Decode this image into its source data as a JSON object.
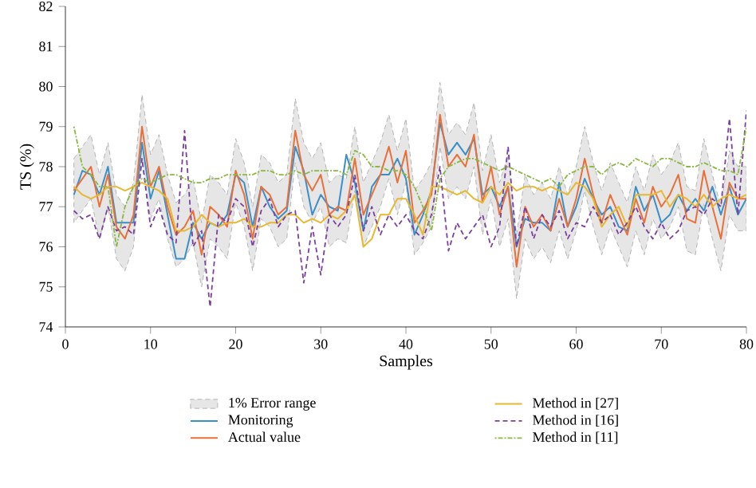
{
  "chart_data": {
    "type": "line",
    "xlabel": "Samples",
    "ylabel": "TS (%)",
    "x": [
      1,
      2,
      3,
      4,
      5,
      6,
      7,
      8,
      9,
      10,
      11,
      12,
      13,
      14,
      15,
      16,
      17,
      18,
      19,
      20,
      21,
      22,
      23,
      24,
      25,
      26,
      27,
      28,
      29,
      30,
      31,
      32,
      33,
      34,
      35,
      36,
      37,
      38,
      39,
      40,
      41,
      42,
      43,
      44,
      45,
      46,
      47,
      48,
      49,
      50,
      51,
      52,
      53,
      54,
      55,
      56,
      57,
      58,
      59,
      60,
      61,
      62,
      63,
      64,
      65,
      66,
      67,
      68,
      69,
      70,
      71,
      72,
      73,
      74,
      75,
      76,
      77,
      78,
      79,
      80
    ],
    "xlim": [
      0,
      80
    ],
    "xticks": [
      0,
      10,
      20,
      30,
      40,
      50,
      60,
      70,
      80
    ],
    "ylim": [
      74,
      82
    ],
    "yticks": [
      74,
      75,
      76,
      77,
      78,
      79,
      80,
      81,
      82
    ],
    "grid": false,
    "legend": "bottom",
    "marker": "none",
    "series": [
      {
        "name": "1% Error range",
        "type": "area",
        "color": "#e6e6e6",
        "line_style": "dashed",
        "values": [
          null,
          null,
          null,
          null,
          null,
          null,
          null,
          null,
          null,
          null,
          null,
          null,
          null,
          null,
          null,
          null,
          null,
          null,
          null,
          null,
          null,
          null,
          null,
          null,
          null,
          null,
          null,
          null,
          null,
          null,
          null,
          null,
          null,
          null,
          null,
          null,
          null,
          null,
          null,
          null,
          null,
          null,
          null,
          null,
          null,
          null,
          null,
          null,
          null,
          null,
          null,
          null,
          null,
          null,
          null,
          null,
          null,
          null,
          null,
          null,
          null,
          null,
          null,
          null,
          null,
          null,
          null,
          null,
          null,
          null,
          null,
          null,
          null,
          null,
          null,
          null,
          null,
          null,
          null,
          null
        ],
        "lower": [
          76.6,
          76.9,
          77.2,
          76.2,
          77.0,
          75.7,
          75.4,
          76.0,
          78.2,
          76.7,
          77.2,
          76.2,
          75.5,
          75.7,
          76.1,
          75.0,
          76.2,
          76.0,
          75.7,
          77.1,
          76.5,
          75.4,
          76.7,
          76.5,
          76.0,
          76.2,
          78.1,
          77.0,
          76.6,
          77.0,
          76.0,
          76.2,
          76.1,
          77.4,
          76.0,
          76.5,
          77.0,
          77.7,
          76.8,
          77.6,
          75.8,
          76.1,
          76.5,
          78.5,
          77.2,
          77.5,
          77.2,
          78.0,
          76.3,
          77.2,
          76.0,
          76.7,
          74.7,
          76.2,
          75.7,
          76.0,
          75.6,
          76.4,
          75.7,
          76.4,
          77.4,
          76.5,
          75.8,
          76.5,
          76.0,
          75.5,
          76.4,
          75.8,
          76.7,
          76.2,
          76.5,
          77.0,
          75.9,
          75.8,
          77.1,
          76.2,
          75.4,
          76.8,
          76.4,
          76.4
        ],
        "upper": [
          78.2,
          78.5,
          78.8,
          77.8,
          78.6,
          77.3,
          77.0,
          77.6,
          79.8,
          78.3,
          78.8,
          77.8,
          77.1,
          77.3,
          77.7,
          76.6,
          77.8,
          77.6,
          77.3,
          78.7,
          78.1,
          77.0,
          78.3,
          78.1,
          77.6,
          77.8,
          79.7,
          78.6,
          78.2,
          78.6,
          77.6,
          77.8,
          77.7,
          79.0,
          77.6,
          78.1,
          78.6,
          79.3,
          78.4,
          79.2,
          77.4,
          77.7,
          78.1,
          80.1,
          78.8,
          79.1,
          78.8,
          79.6,
          77.9,
          78.8,
          77.6,
          78.3,
          76.3,
          77.8,
          77.3,
          77.6,
          77.2,
          78.0,
          77.3,
          78.0,
          79.0,
          78.1,
          77.4,
          78.1,
          77.6,
          77.1,
          78.0,
          77.4,
          78.3,
          77.8,
          78.1,
          78.6,
          77.5,
          77.4,
          78.7,
          77.8,
          77.0,
          78.4,
          78.0,
          78.0
        ]
      },
      {
        "name": "Monitoring",
        "color": "#3a8fc8",
        "line_style": "solid",
        "values": [
          77.3,
          77.9,
          77.8,
          77.3,
          78.0,
          76.6,
          76.6,
          76.6,
          78.6,
          77.2,
          77.9,
          76.8,
          75.7,
          75.7,
          76.6,
          76.2,
          76.6,
          76.5,
          76.8,
          77.8,
          77.6,
          76.5,
          77.5,
          77.0,
          76.7,
          76.9,
          78.5,
          77.9,
          76.8,
          77.3,
          77.0,
          76.9,
          78.3,
          77.6,
          76.4,
          77.5,
          77.8,
          77.8,
          78.2,
          77.7,
          76.3,
          76.8,
          77.4,
          79.1,
          78.3,
          78.6,
          78.3,
          78.7,
          77.3,
          77.5,
          77.0,
          77.5,
          76.0,
          76.7,
          76.6,
          76.6,
          76.4,
          77.6,
          76.5,
          77.0,
          77.7,
          77.2,
          76.8,
          77.0,
          76.5,
          76.4,
          77.5,
          76.9,
          77.3,
          76.6,
          76.8,
          77.3,
          76.9,
          77.2,
          76.9,
          77.5,
          76.8,
          77.5,
          76.8,
          77.2
        ]
      },
      {
        "name": "Actual value",
        "color": "#e8703a",
        "line_style": "solid",
        "values": [
          77.4,
          77.7,
          78.0,
          77.0,
          77.8,
          76.5,
          76.2,
          76.8,
          79.0,
          77.5,
          78.0,
          77.0,
          76.3,
          76.5,
          76.9,
          75.8,
          77.0,
          76.8,
          76.5,
          77.9,
          77.3,
          76.2,
          77.5,
          77.3,
          76.8,
          77.0,
          78.9,
          77.8,
          77.4,
          77.8,
          76.8,
          77.0,
          76.9,
          78.2,
          76.8,
          77.3,
          77.8,
          78.5,
          77.6,
          78.4,
          76.6,
          76.9,
          77.3,
          79.3,
          78.0,
          78.3,
          78.0,
          78.8,
          77.1,
          78.0,
          76.8,
          77.5,
          75.5,
          77.0,
          76.5,
          76.8,
          76.4,
          77.2,
          76.5,
          77.2,
          78.2,
          77.3,
          76.6,
          77.3,
          76.8,
          76.3,
          77.2,
          76.6,
          77.5,
          77.0,
          77.3,
          77.8,
          76.7,
          76.6,
          77.9,
          77.0,
          76.2,
          77.6,
          77.2,
          77.2
        ]
      },
      {
        "name": "Method in [27]",
        "color": "#e8b830",
        "line_style": "solid",
        "values": [
          77.5,
          77.3,
          77.2,
          77.3,
          77.5,
          77.5,
          77.4,
          77.5,
          77.6,
          77.5,
          77.4,
          77.2,
          76.4,
          76.4,
          76.5,
          76.8,
          76.6,
          76.5,
          76.6,
          76.6,
          76.7,
          76.5,
          76.5,
          76.6,
          76.6,
          76.8,
          76.8,
          76.6,
          76.7,
          76.6,
          76.8,
          76.7,
          76.9,
          77.3,
          76.0,
          76.2,
          76.8,
          76.8,
          77.2,
          77.2,
          76.8,
          76.3,
          77.5,
          77.5,
          77.4,
          77.3,
          77.4,
          77.2,
          77.1,
          77.5,
          77.3,
          77.6,
          77.4,
          77.5,
          77.5,
          77.4,
          77.5,
          77.4,
          77.3,
          77.6,
          77.5,
          77.2,
          76.5,
          76.8,
          77.0,
          76.5,
          77.3,
          77.3,
          77.3,
          77.4,
          77.0,
          77.3,
          77.2,
          77.0,
          77.3,
          77.0,
          77.2,
          77.3,
          77.2,
          77.3
        ]
      },
      {
        "name": "Method in [16]",
        "color": "#7b3f9e",
        "line_style": "dashed",
        "values": [
          76.9,
          76.7,
          76.8,
          76.2,
          77.0,
          76.4,
          76.5,
          76.3,
          78.2,
          76.5,
          77.0,
          76.3,
          76.1,
          78.9,
          76.0,
          76.4,
          74.5,
          76.8,
          76.6,
          77.2,
          77.0,
          76.0,
          76.9,
          77.2,
          76.5,
          76.8,
          76.9,
          75.1,
          76.5,
          75.3,
          76.8,
          76.5,
          76.8,
          77.8,
          76.4,
          77.0,
          76.3,
          76.8,
          76.5,
          76.8,
          76.4,
          76.2,
          76.8,
          78.0,
          75.9,
          76.6,
          76.2,
          76.5,
          76.8,
          76.0,
          76.5,
          78.5,
          76.0,
          77.0,
          76.2,
          76.8,
          76.5,
          76.9,
          76.2,
          76.6,
          76.5,
          77.0,
          76.6,
          76.8,
          76.3,
          76.6,
          77.0,
          76.5,
          76.2,
          76.6,
          76.2,
          76.4,
          76.9,
          77.0,
          76.8,
          77.2,
          77.0,
          79.2,
          76.8,
          79.4
        ]
      },
      {
        "name": "Method in [11]",
        "color": "#8ab840",
        "line_style": "dotted",
        "values": [
          79.0,
          78.0,
          77.8,
          77.5,
          77.5,
          76.0,
          77.0,
          77.5,
          77.7,
          77.6,
          77.7,
          77.8,
          77.8,
          77.7,
          77.6,
          77.6,
          77.7,
          77.7,
          77.8,
          77.8,
          77.8,
          77.8,
          77.9,
          77.9,
          77.8,
          77.8,
          77.9,
          77.8,
          77.9,
          77.9,
          77.9,
          77.9,
          77.8,
          78.4,
          78.3,
          78.0,
          78.0,
          77.9,
          77.9,
          77.8,
          77.5,
          77.0,
          76.4,
          77.7,
          78.0,
          78.1,
          78.2,
          78.2,
          78.1,
          78.0,
          77.9,
          78.0,
          77.9,
          77.8,
          77.7,
          77.6,
          77.7,
          77.5,
          77.8,
          77.9,
          78.0,
          78.0,
          77.8,
          78.0,
          78.1,
          78.0,
          78.2,
          78.1,
          78.0,
          78.2,
          78.2,
          78.1,
          78.0,
          78.0,
          78.1,
          78.0,
          77.9,
          77.9,
          77.8,
          79.0
        ]
      }
    ]
  }
}
